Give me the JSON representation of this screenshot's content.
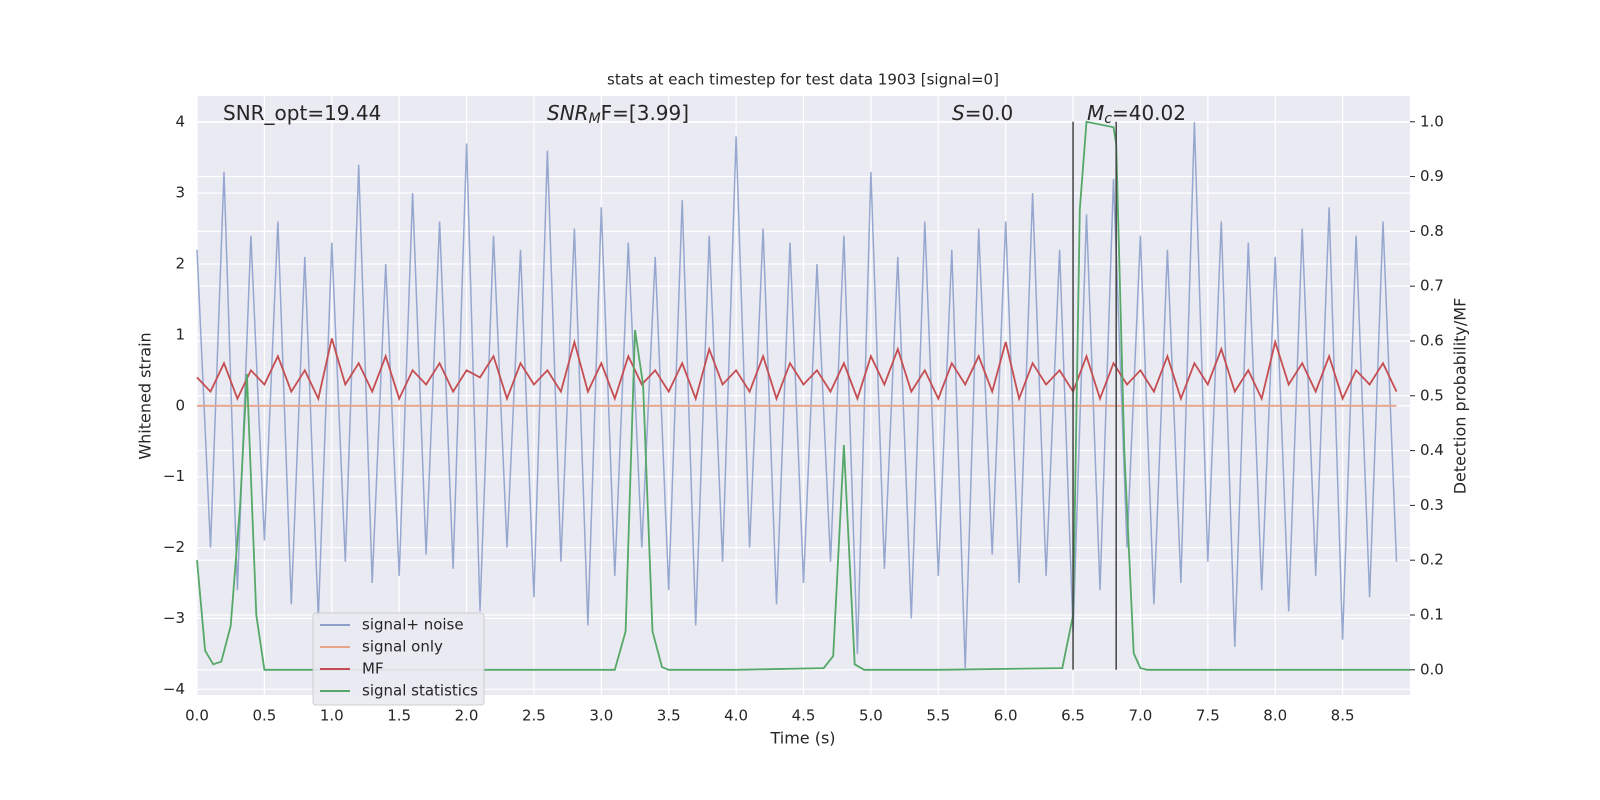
{
  "chart_data": {
    "type": "line",
    "title": "stats at each timestep for test data 1903 [signal=0]",
    "xlabel": "Time (s)",
    "ylabel": "Whitened strain",
    "y2label": "Detection probability/MF",
    "annotations": [
      {
        "base": "SNR_opt=19.44"
      },
      {
        "base": "SNR",
        "sub": "M",
        "rest": "F=[3.99]"
      },
      {
        "base": "S",
        "rest": "=0.0"
      },
      {
        "base": "M",
        "sub": "c",
        "rest": "=40.02"
      }
    ],
    "grid": true,
    "legend": "lower left",
    "xlim": [
      0,
      9.0
    ],
    "ylim": [
      -4.08,
      4.37
    ],
    "y2lim": [
      -0.046,
      1.047
    ],
    "xticks": [
      {
        "value": 0,
        "label": "0.0"
      },
      {
        "value": 0.5,
        "label": "0.5"
      },
      {
        "value": 1,
        "label": "1.0"
      },
      {
        "value": 1.5,
        "label": "1.5"
      },
      {
        "value": 2,
        "label": "2.0"
      },
      {
        "value": 2.5,
        "label": "2.5"
      },
      {
        "value": 3,
        "label": "3.0"
      },
      {
        "value": 3.5,
        "label": "3.5"
      },
      {
        "value": 4,
        "label": "4.0"
      },
      {
        "value": 4.5,
        "label": "4.5"
      },
      {
        "value": 5,
        "label": "5.0"
      },
      {
        "value": 5.5,
        "label": "5.5"
      },
      {
        "value": 6,
        "label": "6.0"
      },
      {
        "value": 6.5,
        "label": "6.5"
      },
      {
        "value": 7,
        "label": "7.0"
      },
      {
        "value": 7.5,
        "label": "7.5"
      },
      {
        "value": 8,
        "label": "8.0"
      },
      {
        "value": 8.5,
        "label": "8.5"
      }
    ],
    "yticks": [
      {
        "value": -4,
        "label": "−4"
      },
      {
        "value": -3,
        "label": "−3"
      },
      {
        "value": -2,
        "label": "−2"
      },
      {
        "value": -1,
        "label": "−1"
      },
      0,
      1,
      2,
      3,
      4
    ],
    "y2ticks": [
      {
        "value": 0,
        "label": "0.0"
      },
      {
        "value": 0.1,
        "label": "0.1"
      },
      {
        "value": 0.2,
        "label": "0.2"
      },
      {
        "value": 0.3,
        "label": "0.3"
      },
      {
        "value": 0.4,
        "label": "0.4"
      },
      {
        "value": 0.5,
        "label": "0.5"
      },
      {
        "value": 0.6,
        "label": "0.6"
      },
      {
        "value": 0.7,
        "label": "0.7"
      },
      {
        "value": 0.8,
        "label": "0.8"
      },
      {
        "value": 0.9,
        "label": "0.9"
      },
      {
        "value": 1,
        "label": "1.0"
      }
    ],
    "x": [
      0,
      0.1,
      0.2,
      0.3,
      0.4,
      0.5,
      0.6,
      0.7,
      0.8,
      0.9,
      1,
      1.1,
      1.2,
      1.3,
      1.4,
      1.5,
      1.6,
      1.7,
      1.8,
      1.9,
      2,
      2.1,
      2.2,
      2.3,
      2.4,
      2.5,
      2.6,
      2.7,
      2.8,
      2.9,
      3,
      3.1,
      3.2,
      3.3,
      3.4,
      3.5,
      3.6,
      3.7,
      3.8,
      3.9,
      4,
      4.1,
      4.2,
      4.3,
      4.4,
      4.5,
      4.6,
      4.7,
      4.8,
      4.9,
      5,
      5.1,
      5.2,
      5.3,
      5.4,
      5.5,
      5.6,
      5.7,
      5.8,
      5.9,
      6,
      6.1,
      6.2,
      6.3,
      6.4,
      6.5,
      6.6,
      6.7,
      6.8,
      6.9,
      7,
      7.1,
      7.2,
      7.3,
      7.4,
      7.5,
      7.6,
      7.7,
      7.8,
      7.9,
      8,
      8.1,
      8.2,
      8.3,
      8.4,
      8.5,
      8.6,
      8.7,
      8.8,
      8.9
    ],
    "series": [
      {
        "name": "signal+ noise",
        "color": "#8da0cb",
        "axis": "y",
        "values": [
          2.2,
          -2.0,
          3.3,
          -2.6,
          2.4,
          -1.9,
          2.6,
          -2.8,
          2.1,
          -3.0,
          2.3,
          -2.2,
          3.4,
          -2.5,
          2.0,
          -2.4,
          3.0,
          -2.1,
          2.6,
          -2.3,
          3.7,
          -2.9,
          2.4,
          -2.0,
          2.2,
          -2.7,
          3.6,
          -2.2,
          2.5,
          -3.1,
          2.8,
          -2.4,
          2.3,
          -2.0,
          2.1,
          -2.6,
          2.9,
          -3.1,
          2.4,
          -2.2,
          3.8,
          -2.0,
          2.5,
          -2.8,
          2.3,
          -2.5,
          2.0,
          -2.2,
          2.4,
          -3.5,
          3.3,
          -2.3,
          2.1,
          -3.0,
          2.6,
          -2.4,
          2.2,
          -3.7,
          2.5,
          -2.1,
          2.6,
          -2.5,
          3.0,
          -2.4,
          2.2,
          -3.2,
          2.7,
          -2.6,
          3.2,
          -2.0,
          2.4,
          -2.8,
          2.2,
          -2.5,
          4.0,
          -2.2,
          2.6,
          -3.4,
          2.3,
          -2.6,
          2.1,
          -2.9,
          2.5,
          -2.4,
          2.8,
          -3.3,
          2.4,
          -2.7,
          2.6,
          -2.2
        ]
      },
      {
        "name": "signal only",
        "color": "#e8a48a",
        "axis": "y",
        "values": [
          0,
          0,
          0,
          0,
          0,
          0,
          0,
          0,
          0,
          0,
          0,
          0,
          0,
          0,
          0,
          0,
          0,
          0,
          0,
          0,
          0,
          0,
          0,
          0,
          0,
          0,
          0,
          0,
          0,
          0,
          0,
          0,
          0,
          0,
          0,
          0,
          0,
          0,
          0,
          0,
          0,
          0,
          0,
          0,
          0,
          0,
          0,
          0,
          0,
          0,
          0,
          0,
          0,
          0,
          0,
          0,
          0,
          0,
          0,
          0,
          0,
          0,
          0,
          0,
          0,
          0,
          0,
          0,
          0,
          0,
          0,
          0,
          0,
          0,
          0,
          0,
          0,
          0,
          0,
          0,
          0,
          0,
          0,
          0,
          0,
          0,
          0,
          0,
          0,
          0
        ]
      },
      {
        "name": "MF",
        "color": "#c44e52",
        "axis": "y",
        "values": [
          0.4,
          0.2,
          0.6,
          0.1,
          0.5,
          0.3,
          0.7,
          0.2,
          0.5,
          0.1,
          0.95,
          0.3,
          0.6,
          0.2,
          0.7,
          0.1,
          0.5,
          0.3,
          0.6,
          0.2,
          0.5,
          0.4,
          0.7,
          0.1,
          0.6,
          0.3,
          0.5,
          0.2,
          0.9,
          0.2,
          0.6,
          0.1,
          0.7,
          0.3,
          0.5,
          0.2,
          0.6,
          0.1,
          0.8,
          0.3,
          0.5,
          0.2,
          0.7,
          0.1,
          0.6,
          0.3,
          0.5,
          0.2,
          0.6,
          0.1,
          0.7,
          0.3,
          0.8,
          0.2,
          0.5,
          0.1,
          0.6,
          0.3,
          0.7,
          0.2,
          0.9,
          0.1,
          0.6,
          0.3,
          0.5,
          0.2,
          0.7,
          0.1,
          0.6,
          0.3,
          0.5,
          0.2,
          0.7,
          0.1,
          0.6,
          0.3,
          0.8,
          0.2,
          0.5,
          0.1,
          0.9,
          0.3,
          0.6,
          0.2,
          0.7,
          0.1,
          0.5,
          0.3,
          0.6,
          0.2
        ]
      },
      {
        "name": "signal statistics",
        "color": "#55a868",
        "axis": "y2",
        "x": [
          0,
          0.06,
          0.12,
          0.18,
          0.25,
          0.32,
          0.37,
          0.44,
          0.5,
          1.5,
          2.5,
          3.1,
          3.18,
          3.25,
          3.31,
          3.38,
          3.45,
          3.5,
          4.0,
          4.65,
          4.72,
          4.8,
          4.88,
          4.95,
          5.5,
          6.42,
          6.5,
          6.55,
          6.6,
          6.8,
          6.82,
          6.88,
          6.95,
          7.0,
          7.05,
          9.0
        ],
        "values": [
          0.2,
          0.035,
          0.01,
          0.015,
          0.08,
          0.3,
          0.54,
          0.1,
          0.0,
          0.0,
          0.0,
          0.0,
          0.07,
          0.62,
          0.52,
          0.07,
          0.005,
          0.0,
          0.0,
          0.003,
          0.025,
          0.41,
          0.01,
          0.0,
          0.0,
          0.003,
          0.1,
          0.84,
          1.0,
          0.99,
          0.96,
          0.4,
          0.03,
          0.003,
          0.0,
          0.0
        ]
      }
    ],
    "vlines": {
      "x": [
        6.5,
        6.82
      ],
      "y2range": [
        0,
        1
      ],
      "color": "#444444"
    }
  }
}
